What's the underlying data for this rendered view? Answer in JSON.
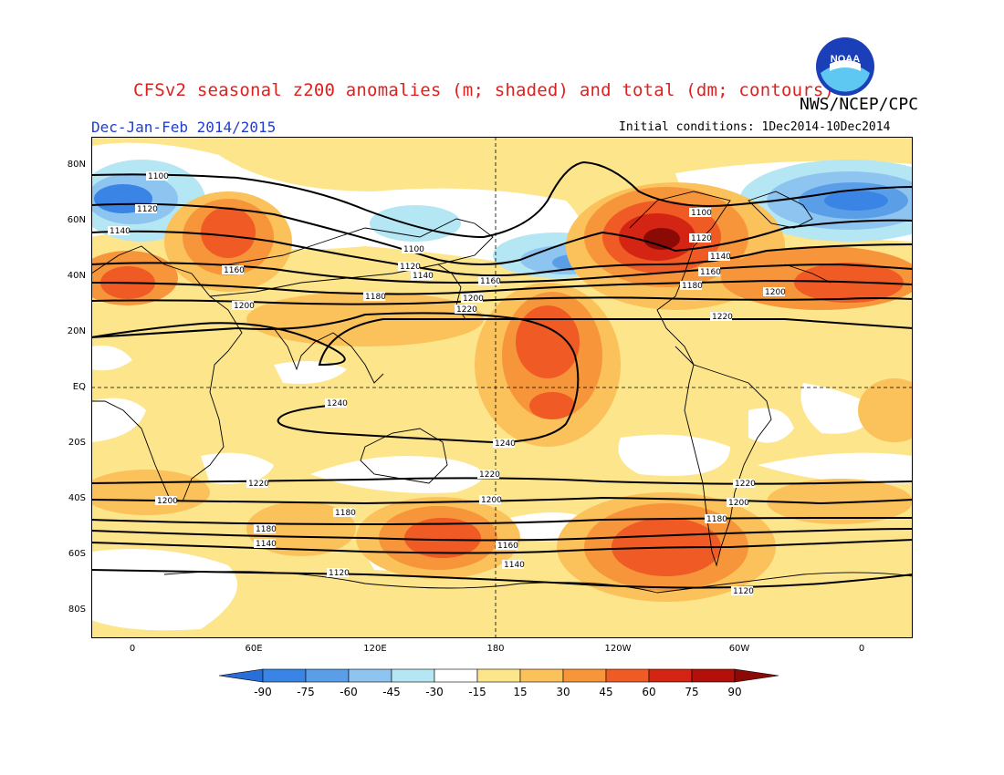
{
  "header": {
    "title": "CFSv2 seasonal z200 anomalies (m; shaded) and total (dm; contours)",
    "agency": "NWS/NCEP/CPC",
    "period": "Dec-Jan-Feb 2014/2015",
    "initial_conditions": "Initial conditions: 1Dec2014-10Dec2014",
    "logo_text": "NOAA"
  },
  "axes": {
    "lat_labels": [
      "80N",
      "60N",
      "40N",
      "20N",
      "EQ",
      "20S",
      "40S",
      "60S",
      "80S"
    ],
    "lon_labels": [
      "0",
      "60E",
      "120E",
      "180",
      "120W",
      "60W",
      "0"
    ]
  },
  "colorbar": {
    "labels": [
      "-90",
      "-75",
      "-60",
      "-45",
      "-30",
      "-15",
      "15",
      "30",
      "45",
      "60",
      "75",
      "90"
    ],
    "colors": [
      "#2a6fd6",
      "#3a84e6",
      "#5a9ee8",
      "#8ec4f0",
      "#b4e6f4",
      "#ffffff",
      "#fde58c",
      "#fbc15a",
      "#f7953a",
      "#f05a24",
      "#d42414",
      "#b21008",
      "#8c0a06"
    ]
  },
  "contour_labels": {
    "c1100": "1100",
    "c1120": "1120",
    "c1140": "1140",
    "c1160": "1160",
    "c1180": "1180",
    "c1200": "1200",
    "c1220": "1220",
    "c1240": "1240"
  }
}
